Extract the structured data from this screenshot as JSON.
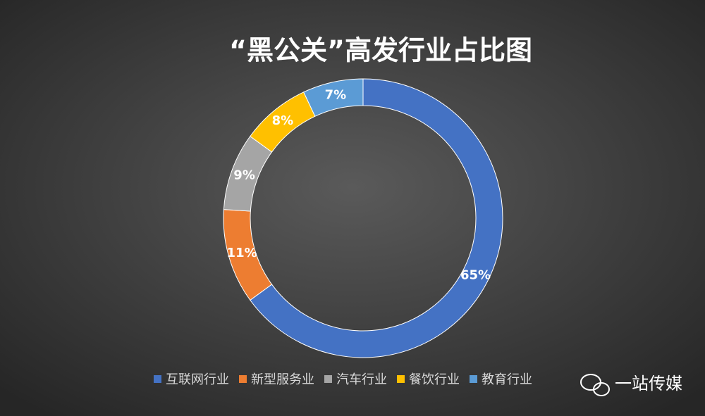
{
  "chart_data": {
    "type": "donut",
    "title": "“黑公关”高发行业占比图",
    "categories": [
      "互联网行业",
      "新型服务业",
      "汽车行业",
      "餐饮行业",
      "教育行业"
    ],
    "values": [
      65,
      11,
      9,
      8,
      7
    ],
    "value_labels": [
      "65%",
      "11%",
      "9%",
      "8%",
      "7%"
    ],
    "colors": [
      "#4472c4",
      "#ed7d31",
      "#a5a5a5",
      "#ffc000",
      "#5b9bd5"
    ],
    "legend": "bottom"
  },
  "watermark": "一站传媒"
}
